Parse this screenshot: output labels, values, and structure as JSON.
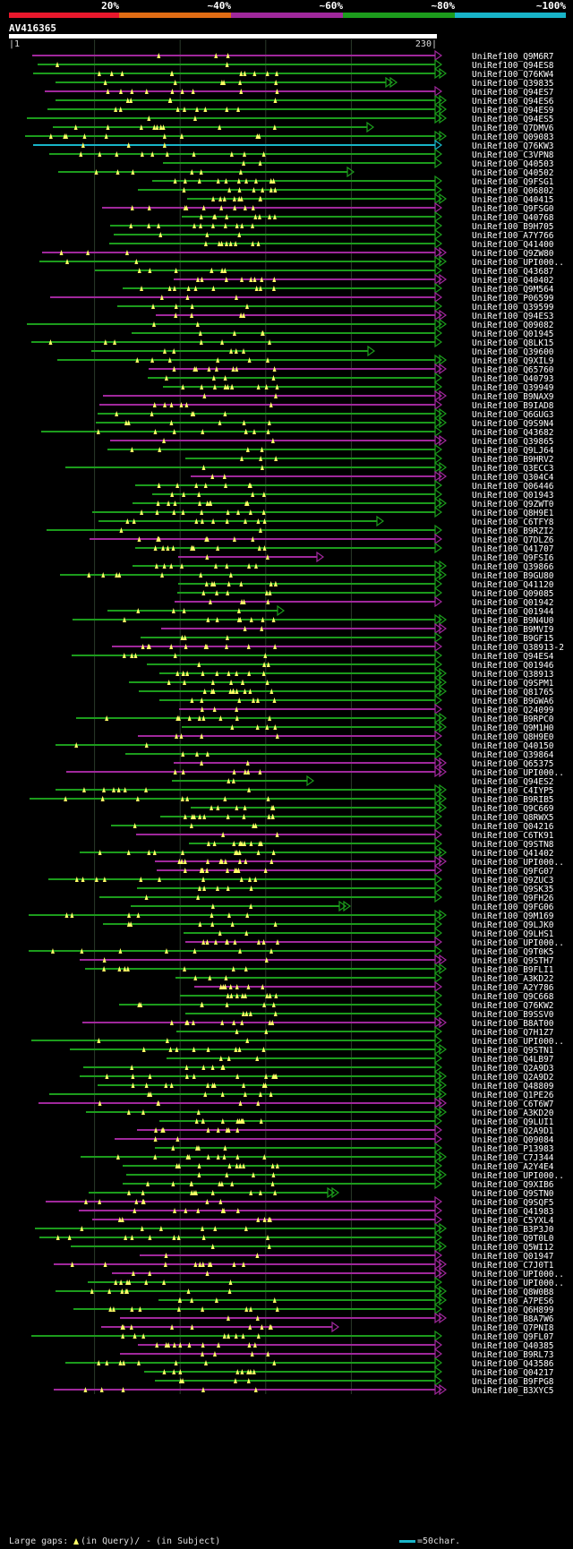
{
  "query_name": "AV416365",
  "scale": {
    "start": "|1",
    "end": "230|"
  },
  "identity_legend": [
    {
      "label": "20%",
      "color": "#e8182c"
    },
    {
      "label": "~40%",
      "color": "#e06c14"
    },
    {
      "label": "~60%",
      "color": "#a0289c"
    },
    {
      "label": "~80%",
      "color": "#1c9c1c"
    },
    {
      "label": "~100%",
      "color": "#18b4c8"
    }
  ],
  "footer": {
    "gaps_prefix": "Large gaps:",
    "in_query": "(in Query)/",
    "dash": "-",
    "in_subject": "(in Subject)",
    "scale_note": "=50char."
  },
  "chart_data": {
    "type": "alignment-overview",
    "query_length": 230,
    "hit_ids": [
      "UniRef100_Q9M6R7",
      "UniRef100_Q94ES8",
      "UniRef100_Q76KW4",
      "UniRef100_Q39835",
      "UniRef100_Q94ES7",
      "UniRef100_Q94ES6",
      "UniRef100_Q94ES9",
      "UniRef100_Q94ES5",
      "UniRef100_Q7DMV6",
      "UniRef100_Q09083",
      "UniRef100_Q76KW3",
      "UniRef100_C3VPN8",
      "UniRef100_Q40503",
      "UniRef100_Q40502",
      "UniRef100_Q9FSG1",
      "UniRef100_Q06802",
      "UniRef100_Q40415",
      "UniRef100_Q9FSG0",
      "UniRef100_Q40768",
      "UniRef100_B9H705",
      "UniRef100_A7Y766",
      "UniRef100_Q41400",
      "UniRef100_Q9ZW80",
      "UniRef100_UPI000..",
      "UniRef100_Q43687",
      "UniRef100_Q40402",
      "UniRef100_Q9M564",
      "UniRef100_P06599",
      "UniRef100_Q39599",
      "UniRef100_Q94ES3",
      "UniRef100_Q09082",
      "UniRef100_Q01945",
      "UniRef100_Q8LK15",
      "UniRef100_Q39600",
      "UniRef100_Q9XIL9",
      "UniRef100_Q65760",
      "UniRef100_Q40793",
      "UniRef100_Q39949",
      "UniRef100_B9NAX9",
      "UniRef100_B9IAD8",
      "UniRef100_Q6GUG3",
      "UniRef100_Q9S9N4",
      "UniRef100_Q43682",
      "UniRef100_Q39865",
      "UniRef100_Q9LJ64",
      "UniRef100_B9HRV2",
      "UniRef100_Q3ECC3",
      "UniRef100_Q304C4",
      "UniRef100_Q06446",
      "UniRef100_Q01943",
      "UniRef100_Q9ZWT0",
      "UniRef100_Q8H9E1",
      "UniRef100_C6TFY8",
      "UniRef100_B9RZI2",
      "UniRef100_Q7DLZ6",
      "UniRef100_Q41707",
      "UniRef100_Q9FSI6",
      "UniRef100_Q39866",
      "UniRef100_B9GU80",
      "UniRef100_Q41120",
      "UniRef100_Q09085",
      "UniRef100_Q01942",
      "UniRef100_Q01944",
      "UniRef100_B9N4U0",
      "UniRef100_B9MVI9",
      "UniRef100_B9GF15",
      "UniRef100_Q38913-2",
      "UniRef100_Q94ES4",
      "UniRef100_Q01946",
      "UniRef100_Q38913",
      "UniRef100_Q9SPM1",
      "UniRef100_Q81765",
      "UniRef100_B9GWA6",
      "UniRef100_Q24099",
      "UniRef100_B9RPC0",
      "UniRef100_Q9M1H0",
      "UniRef100_Q8H9E0",
      "UniRef100_Q40150",
      "UniRef100_Q39864",
      "UniRef100_Q65375",
      "UniRef100_UPI000..",
      "UniRef100_Q94ES2",
      "UniRef100_C4IYP5",
      "UniRef100_B9RIB5",
      "UniRef100_Q9C669",
      "UniRef100_Q8RWX5",
      "UniRef100_Q04216",
      "UniRef100_C6TK91",
      "UniRef100_Q9STN8",
      "UniRef100_Q41402",
      "UniRef100_UPI000..",
      "UniRef100_Q9FG07",
      "UniRef100_Q9ZUC3",
      "UniRef100_Q9SK35",
      "UniRef100_Q9FH26",
      "UniRef100_Q9FG06",
      "UniRef100_Q9M169",
      "UniRef100_Q9LJK0",
      "UniRef100_Q9LHS1",
      "UniRef100_UPI000..",
      "UniRef100_Q9T0K5",
      "UniRef100_Q9STH7",
      "UniRef100_B9FLI1",
      "UniRef100_A3KD22",
      "UniRef100_A2Y786",
      "UniRef100_Q9C668",
      "UniRef100_Q76KW2",
      "UniRef100_B9SSV0",
      "UniRef100_B8AT00",
      "UniRef100_Q7H1Z7",
      "UniRef100_UPI000..",
      "UniRef100_Q9STN1",
      "UniRef100_Q4LB97",
      "UniRef100_Q2A9D3",
      "UniRef100_Q2A9D2",
      "UniRef100_Q48809",
      "UniRef100_Q1PE26",
      "UniRef100_C6T6W7",
      "UniRef100_A3KD20",
      "UniRef100_Q9LUI1",
      "UniRef100_Q2A9D1",
      "UniRef100_Q09084",
      "UniRef100_P13983",
      "UniRef100_C7J344",
      "UniRef100_A2Y4E4",
      "UniRef100_UPI000..",
      "UniRef100_Q9XIB6",
      "UniRef100_Q9STN0",
      "UniRef100_Q9SQF5",
      "UniRef100_Q41983",
      "UniRef100_C5YXL4",
      "UniRef100_B3P3J0",
      "UniRef100_Q9T0L0",
      "UniRef100_Q5WI12",
      "UniRef100_Q01947",
      "UniRef100_C7J0T1",
      "UniRef100_UPI000..",
      "UniRef100_UPI000..",
      "UniRef100_Q8W0B8",
      "UniRef100_A7PES6",
      "UniRef100_Q6H899",
      "UniRef100_B8A7W6",
      "UniRef100_Q7PNI8",
      "UniRef100_Q9FL07",
      "UniRef100_Q40385",
      "UniRef100_B9RL73",
      "UniRef100_Q43586",
      "UniRef100_Q04217",
      "UniRef100_B9FPG8",
      "UniRef100_B3XYC5"
    ]
  }
}
